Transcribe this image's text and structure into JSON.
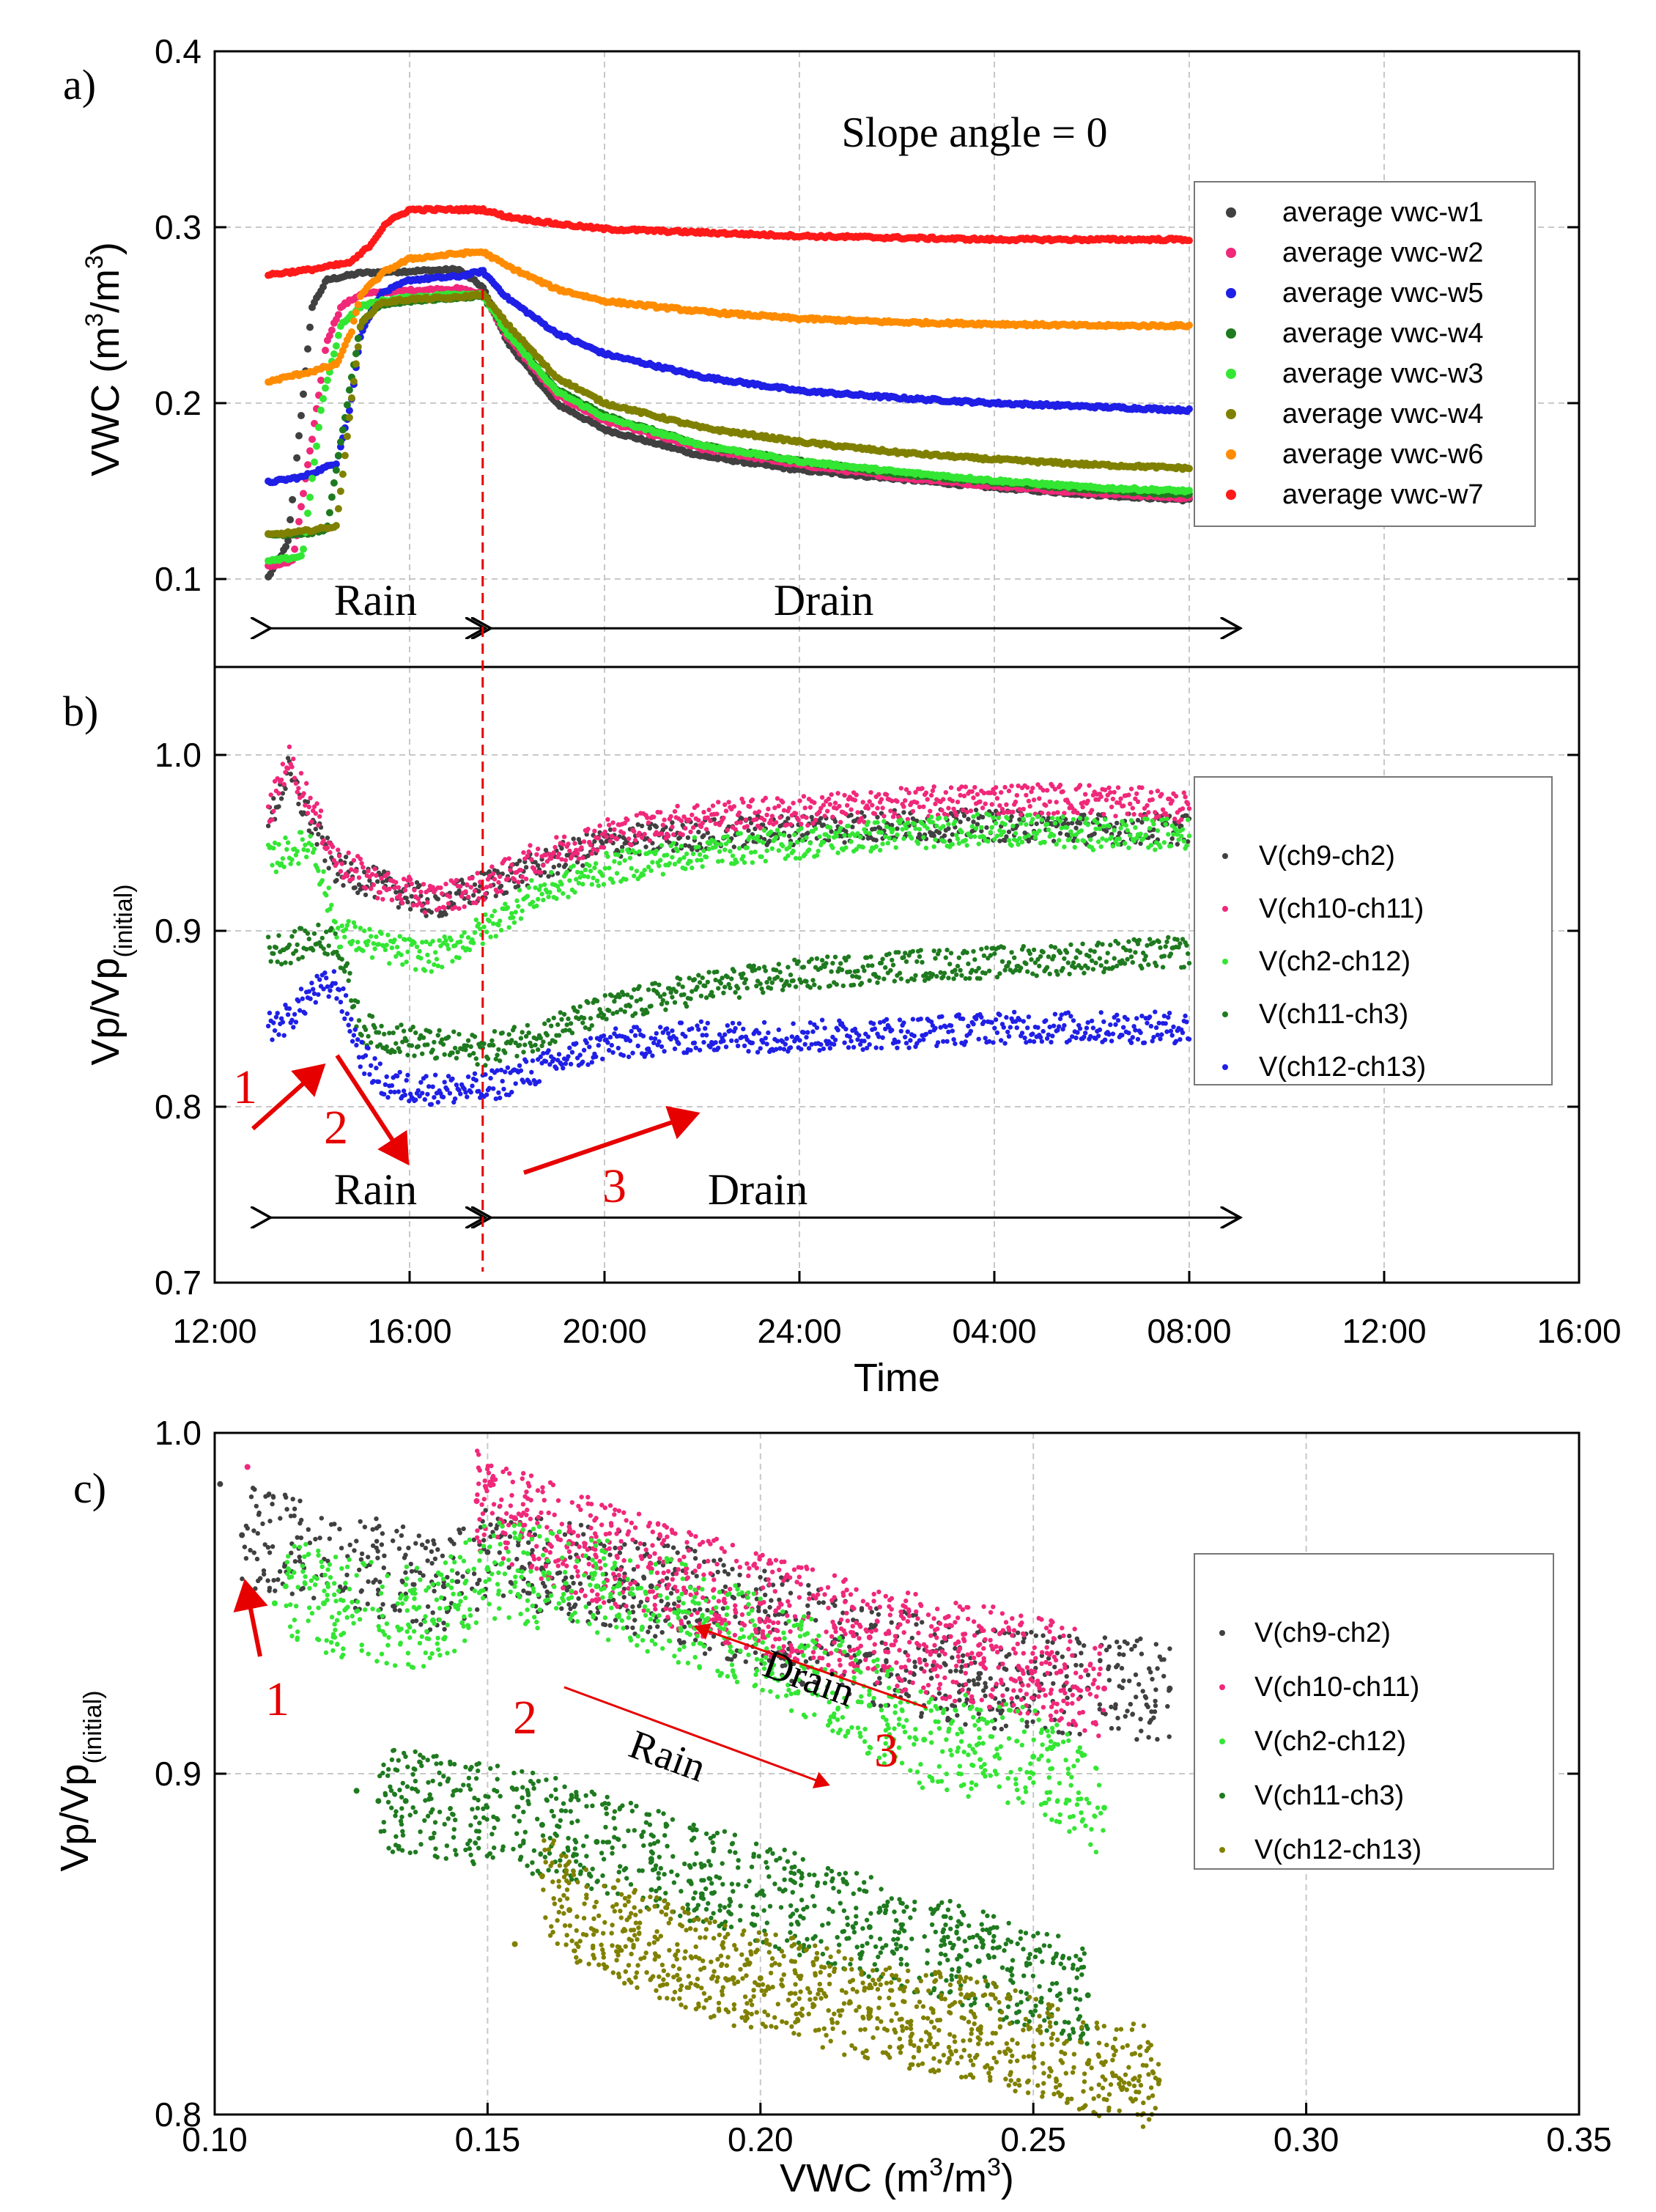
{
  "chart_data": [
    {
      "panel": "a)",
      "type": "scatter",
      "title": "Slope angle = 0",
      "xlabel": "",
      "ylabel": "VWC (m3/m3)",
      "ylabel_main": "VWC (m",
      "ylabel_sup": "3",
      "ylabel_mid": "/m",
      "ylabel_end": ")",
      "xlim": [
        12,
        40
      ],
      "ylim": [
        0.05,
        0.4
      ],
      "yticks": [
        0.1,
        0.2,
        0.3,
        0.4
      ],
      "ytick_labels": [
        "0.1",
        "0.2",
        "0.3",
        "0.4"
      ],
      "grid": true,
      "legend_position": "right",
      "phases": {
        "rain_label": "Rain",
        "drain_label": "Drain",
        "rain_range": [
          13.1,
          17.5
        ],
        "drain_range": [
          17.5,
          33.0
        ],
        "arrow_y": 0.072
      },
      "series": [
        {
          "name": "average vwc-w1",
          "color": "#404040",
          "x": [
            13.1,
            13.5,
            13.8,
            14.0,
            14.3,
            15,
            16,
            17,
            17.5,
            18,
            19,
            20,
            22,
            24,
            26,
            28,
            30,
            32
          ],
          "y": [
            0.101,
            0.12,
            0.2,
            0.255,
            0.27,
            0.274,
            0.275,
            0.276,
            0.266,
            0.235,
            0.2,
            0.185,
            0.17,
            0.162,
            0.157,
            0.152,
            0.148,
            0.145
          ]
        },
        {
          "name": "average vwc-w2",
          "color": "#f0287a",
          "x": [
            13.1,
            13.6,
            14.0,
            14.3,
            14.6,
            15.0,
            16,
            17,
            17.5,
            18,
            19,
            20,
            22,
            24,
            26,
            28,
            30,
            32
          ],
          "y": [
            0.107,
            0.11,
            0.18,
            0.235,
            0.255,
            0.262,
            0.264,
            0.265,
            0.262,
            0.238,
            0.205,
            0.19,
            0.174,
            0.165,
            0.158,
            0.153,
            0.149,
            0.146
          ]
        },
        {
          "name": "average vwc-w5",
          "color": "#1f1fe6",
          "x": [
            13.1,
            13.8,
            14.5,
            14.8,
            15.0,
            15.4,
            16,
            17,
            17.5,
            18,
            19,
            20,
            22,
            24,
            26,
            28,
            30,
            32
          ],
          "y": [
            0.155,
            0.158,
            0.166,
            0.2,
            0.24,
            0.262,
            0.27,
            0.272,
            0.275,
            0.26,
            0.24,
            0.228,
            0.215,
            0.207,
            0.203,
            0.2,
            0.198,
            0.196
          ]
        },
        {
          "name": "average vwc-w4",
          "color": "#1f7a1f",
          "x": [
            13.1,
            13.9,
            14.3,
            14.6,
            15.0,
            15.4,
            16,
            17,
            17.5,
            18,
            19,
            20,
            22,
            24,
            26,
            28,
            30,
            32
          ],
          "y": [
            0.125,
            0.126,
            0.128,
            0.18,
            0.245,
            0.256,
            0.258,
            0.26,
            0.261,
            0.24,
            0.208,
            0.193,
            0.176,
            0.167,
            0.16,
            0.155,
            0.151,
            0.148
          ]
        },
        {
          "name": "average vwc-w3",
          "color": "#33e633",
          "x": [
            13.1,
            13.8,
            14.2,
            14.6,
            15.0,
            15.4,
            16,
            17,
            17.5,
            18,
            19,
            20,
            22,
            24,
            26,
            28,
            30,
            32
          ],
          "y": [
            0.11,
            0.113,
            0.2,
            0.245,
            0.255,
            0.258,
            0.26,
            0.262,
            0.262,
            0.24,
            0.207,
            0.192,
            0.176,
            0.167,
            0.161,
            0.156,
            0.152,
            0.15
          ]
        },
        {
          "name": "average vwc-w4",
          "color": "#808000",
          "x": [
            13.1,
            13.8,
            14.5,
            14.8,
            15.0,
            15.4,
            16,
            17,
            17.5,
            18,
            19,
            20,
            22,
            24,
            26,
            28,
            30,
            32
          ],
          "y": [
            0.125,
            0.127,
            0.13,
            0.2,
            0.245,
            0.257,
            0.259,
            0.26,
            0.262,
            0.245,
            0.215,
            0.2,
            0.186,
            0.178,
            0.172,
            0.168,
            0.165,
            0.163
          ]
        },
        {
          "name": "average vwc-w6",
          "color": "#ff8c00",
          "x": [
            13.1,
            13.5,
            14.0,
            14.5,
            14.8,
            15.0,
            15.5,
            16,
            17,
            17.5,
            18,
            19,
            20,
            22,
            24,
            26,
            28,
            30,
            32
          ],
          "y": [
            0.212,
            0.215,
            0.218,
            0.222,
            0.24,
            0.262,
            0.275,
            0.282,
            0.285,
            0.286,
            0.278,
            0.265,
            0.258,
            0.252,
            0.248,
            0.246,
            0.245,
            0.244,
            0.244
          ]
        },
        {
          "name": "average vwc-w7",
          "color": "#ff1a1a",
          "x": [
            13.1,
            14.0,
            14.8,
            15.2,
            15.5,
            16,
            17,
            17.5,
            18,
            19,
            20,
            22,
            24,
            26,
            28,
            30,
            32
          ],
          "y": [
            0.273,
            0.276,
            0.28,
            0.29,
            0.302,
            0.31,
            0.31,
            0.31,
            0.306,
            0.302,
            0.299,
            0.297,
            0.295,
            0.294,
            0.293,
            0.293,
            0.293
          ]
        }
      ]
    },
    {
      "panel": "b)",
      "type": "scatter",
      "xlabel": "Time",
      "ylabel": "Vp/Vp(initial)",
      "ylabel_main": "Vp/Vp",
      "ylabel_sub": "(initial)",
      "xlim": [
        12,
        40
      ],
      "ylim": [
        0.7,
        1.05
      ],
      "xticks": [
        12,
        16,
        20,
        24,
        28,
        32,
        36,
        40
      ],
      "xtick_labels": [
        "12:00",
        "16:00",
        "20:00",
        "24:00",
        "04:00",
        "08:00",
        "12:00",
        "16:00"
      ],
      "yticks": [
        0.7,
        0.8,
        0.9,
        1.0
      ],
      "ytick_labels": [
        "0.7",
        "0.8",
        "0.9",
        "1.0"
      ],
      "grid": true,
      "legend_position": "right",
      "phases": {
        "rain_label": "Rain",
        "drain_label": "Drain",
        "rain_range": [
          13.1,
          17.5
        ],
        "drain_range": [
          17.5,
          33.0
        ],
        "arrow_y": 0.737
      },
      "annotations": [
        "1",
        "2",
        "3"
      ],
      "series": [
        {
          "name": "V(ch9-ch2)",
          "color": "#404040",
          "x": [
            13.1,
            13.5,
            14.0,
            14.5,
            15.5,
            16.5,
            17.5,
            18.5,
            20,
            22,
            24,
            26,
            28,
            30,
            32
          ],
          "y": [
            0.96,
            0.99,
            0.96,
            0.935,
            0.925,
            0.915,
            0.925,
            0.935,
            0.95,
            0.955,
            0.958,
            0.96,
            0.96,
            0.958,
            0.958
          ]
        },
        {
          "name": "V(ch10-ch11)",
          "color": "#f0287a",
          "x": [
            13.1,
            13.5,
            14.0,
            14.5,
            15.5,
            16.5,
            17.5,
            18.5,
            20,
            22,
            24,
            26,
            28,
            30,
            32
          ],
          "y": [
            0.965,
            0.998,
            0.97,
            0.94,
            0.925,
            0.918,
            0.925,
            0.94,
            0.955,
            0.965,
            0.968,
            0.972,
            0.975,
            0.975,
            0.97
          ]
        },
        {
          "name": "V(ch2-ch12)",
          "color": "#33e633",
          "x": [
            13.1,
            13.5,
            14.0,
            14.5,
            15.5,
            16.5,
            17.5,
            18.5,
            20,
            22,
            24,
            26,
            28,
            30,
            32
          ],
          "y": [
            0.94,
            0.945,
            0.95,
            0.9,
            0.89,
            0.885,
            0.9,
            0.92,
            0.935,
            0.945,
            0.95,
            0.955,
            0.958,
            0.955,
            0.955
          ]
        },
        {
          "name": "V(ch11-ch3)",
          "color": "#1f7a1f",
          "x": [
            13.1,
            13.5,
            14.0,
            14.5,
            15.0,
            15.5,
            16.5,
            17.5,
            18.5,
            20,
            22,
            24,
            26,
            28,
            30,
            32
          ],
          "y": [
            0.89,
            0.89,
            0.895,
            0.895,
            0.845,
            0.84,
            0.835,
            0.832,
            0.84,
            0.855,
            0.868,
            0.875,
            0.88,
            0.882,
            0.885,
            0.888
          ]
        },
        {
          "name": "V(ch12-ch13)",
          "color": "#1f1fe6",
          "x": [
            13.1,
            13.5,
            14.0,
            14.5,
            15.0,
            15.5,
            16.5,
            17.5,
            18.5,
            20,
            22,
            24,
            26,
            28,
            30,
            32
          ],
          "y": [
            0.845,
            0.85,
            0.865,
            0.87,
            0.83,
            0.812,
            0.81,
            0.81,
            0.82,
            0.835,
            0.84,
            0.84,
            0.842,
            0.845,
            0.845,
            0.845
          ]
        }
      ]
    },
    {
      "panel": "c)",
      "type": "scatter",
      "xlabel": "VWC (m3/m3)",
      "xlabel_main": "VWC (m",
      "xlabel_sup": "3",
      "xlabel_mid": "/m",
      "xlabel_end": ")",
      "ylabel": "Vp/Vp(initial)",
      "ylabel_main": "Vp/Vp",
      "ylabel_sub": "(initial)",
      "xlim": [
        0.1,
        0.35
      ],
      "ylim": [
        0.8,
        1.0
      ],
      "xticks": [
        0.1,
        0.15,
        0.2,
        0.25,
        0.3,
        0.35
      ],
      "xtick_labels": [
        "0.10",
        "0.15",
        "0.20",
        "0.25",
        "0.30",
        "0.35"
      ],
      "yticks": [
        0.8,
        0.9,
        1.0
      ],
      "ytick_labels": [
        "0.8",
        "0.9",
        "1.0"
      ],
      "grid": true,
      "legend_position": "right",
      "labels": {
        "drain": "Drain",
        "rain": "Rain",
        "n1": "1",
        "n2": "2",
        "n3": "3"
      },
      "series": [
        {
          "name": "V(ch9-ch2)",
          "color": "#404040",
          "x": [
            0.101,
            0.105,
            0.142,
            0.15,
            0.16,
            0.18,
            0.2,
            0.22,
            0.24,
            0.26,
            0.275
          ],
          "y": [
            0.985,
            0.97,
            0.955,
            0.965,
            0.96,
            0.955,
            0.945,
            0.935,
            0.928,
            0.925,
            0.925
          ]
        },
        {
          "name": "V(ch10-ch11)",
          "color": "#f0287a",
          "x": [
            0.106,
            0.148,
            0.155,
            0.165,
            0.18,
            0.2,
            0.22,
            0.24,
            0.255,
            0.263
          ],
          "y": [
            0.99,
            0.98,
            0.975,
            0.968,
            0.96,
            0.95,
            0.94,
            0.935,
            0.93,
            0.925
          ]
        },
        {
          "name": "V(ch2-ch12)",
          "color": "#33e633",
          "x": [
            0.111,
            0.113,
            0.12,
            0.14,
            0.15,
            0.17,
            0.19,
            0.21,
            0.22,
            0.23,
            0.25,
            0.263
          ],
          "y": [
            0.95,
            0.955,
            0.95,
            0.945,
            0.96,
            0.955,
            0.945,
            0.93,
            0.92,
            0.91,
            0.905,
            0.89
          ]
        },
        {
          "name": "V(ch11-ch3)",
          "color": "#1f7a1f",
          "x": [
            0.126,
            0.13,
            0.135,
            0.16,
            0.17,
            0.18,
            0.2,
            0.22,
            0.24,
            0.26
          ],
          "y": [
            0.895,
            0.892,
            0.892,
            0.885,
            0.88,
            0.875,
            0.865,
            0.855,
            0.845,
            0.835
          ]
        },
        {
          "name": "V(ch12-ch13)",
          "color": "#808000",
          "x": [
            0.155,
            0.16,
            0.165,
            0.195,
            0.2,
            0.22,
            0.24,
            0.26,
            0.273
          ],
          "y": [
            0.85,
            0.87,
            0.86,
            0.84,
            0.84,
            0.83,
            0.825,
            0.815,
            0.81
          ]
        }
      ]
    }
  ]
}
